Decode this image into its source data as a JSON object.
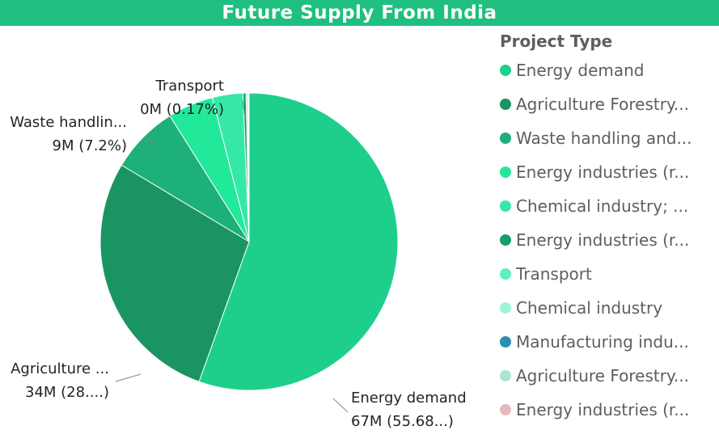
{
  "title": "Future Supply From India",
  "chart_data": {
    "type": "pie",
    "title": "Future Supply From India",
    "legend_title": "Project Type",
    "legend_position": "right",
    "slices": [
      {
        "name": "Energy demand",
        "value": 67,
        "percent": 55.68,
        "color": "#1ecf8c",
        "label_line1": "Energy demand",
        "label_line2": "67M (55.68...)"
      },
      {
        "name": "Agriculture Forestry...",
        "value": 34,
        "percent": 28.0,
        "color": "#1a9461",
        "label_line1": "Agriculture ...",
        "label_line2": "34M (28....)"
      },
      {
        "name": "Waste handling and...",
        "value": 9,
        "percent": 7.2,
        "color": "#1eb07a",
        "label_line1": "Waste handlin...",
        "label_line2": "9M (7.2%)"
      },
      {
        "name": "Energy industries (r...",
        "value": 6,
        "percent": 4.9,
        "color": "#22e89a",
        "label_line1": "",
        "label_line2": ""
      },
      {
        "name": "Chemical industry; ...",
        "value": 4,
        "percent": 3.5,
        "color": "#36e8a8",
        "label_line1": "",
        "label_line2": ""
      },
      {
        "name": "Energy industries (r...",
        "value": 0.4,
        "percent": 0.3,
        "color": "#199e68",
        "label_line1": "",
        "label_line2": ""
      },
      {
        "name": "Transport",
        "value": 0.2,
        "percent": 0.17,
        "color": "#5ef0c0",
        "label_line1": "Transport",
        "label_line2": "0M (0.17%)"
      },
      {
        "name": "Chemical industry",
        "value": 0.08,
        "percent": 0.07,
        "color": "#9ef4d6",
        "label_line1": "",
        "label_line2": ""
      },
      {
        "name": "Manufacturing indu...",
        "value": 0.05,
        "percent": 0.04,
        "color": "#2a8fb4",
        "label_line1": "",
        "label_line2": ""
      },
      {
        "name": "Agriculture Forestry...",
        "value": 0.04,
        "percent": 0.03,
        "color": "#a8e6cf",
        "label_line1": "",
        "label_line2": ""
      },
      {
        "name": "Energy industries (r...",
        "value": 0.03,
        "percent": 0.02,
        "color": "#e6b8bb",
        "label_line1": "",
        "label_line2": ""
      }
    ]
  }
}
